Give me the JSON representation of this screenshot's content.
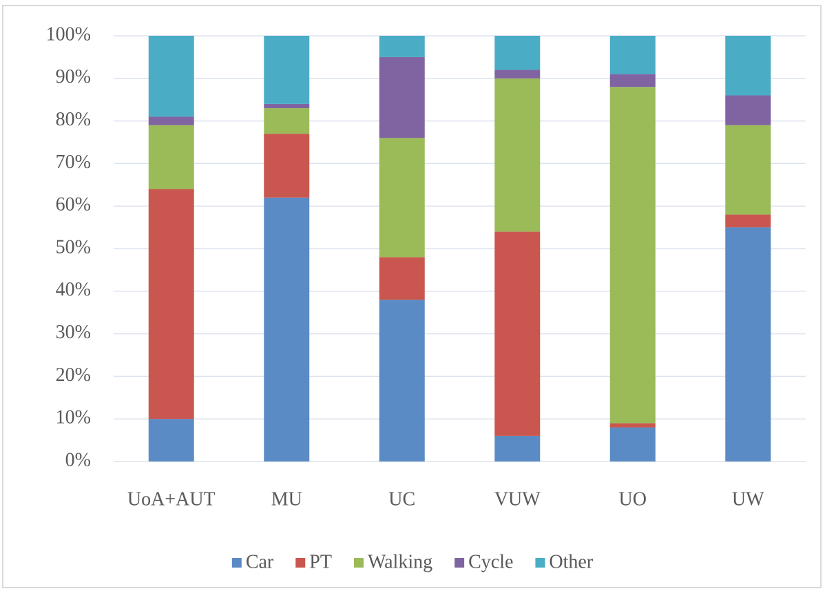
{
  "chart_data": {
    "type": "stacked_bar",
    "categories": [
      "UoA+AUT",
      "MU",
      "UC",
      "VUW",
      "UO",
      "UW"
    ],
    "series": [
      {
        "name": "Car",
        "color": "#5b8bc5",
        "values": [
          10,
          62,
          38,
          6,
          8,
          55
        ]
      },
      {
        "name": "PT",
        "color": "#c9574f",
        "values": [
          54,
          15,
          10,
          48,
          1,
          3
        ]
      },
      {
        "name": "Walking",
        "color": "#9bbb59",
        "values": [
          15,
          6,
          28,
          36,
          79,
          21
        ]
      },
      {
        "name": "Cycle",
        "color": "#8064a2",
        "values": [
          2,
          1,
          19,
          2,
          3,
          7
        ]
      },
      {
        "name": "Other",
        "color": "#4bacc6",
        "values": [
          19,
          16,
          5,
          8,
          9,
          14
        ]
      }
    ],
    "ylim": [
      0,
      100
    ],
    "yticks": [
      {
        "value": 0,
        "label": "0%"
      },
      {
        "value": 10,
        "label": "10%"
      },
      {
        "value": 20,
        "label": "20%"
      },
      {
        "value": 30,
        "label": "30%"
      },
      {
        "value": 40,
        "label": "40%"
      },
      {
        "value": 50,
        "label": "50%"
      },
      {
        "value": 60,
        "label": "60%"
      },
      {
        "value": 70,
        "label": "70%"
      },
      {
        "value": 80,
        "label": "80%"
      },
      {
        "value": 90,
        "label": "90%"
      },
      {
        "value": 100,
        "label": "100%"
      }
    ],
    "grid": true,
    "legend": "bottom"
  }
}
